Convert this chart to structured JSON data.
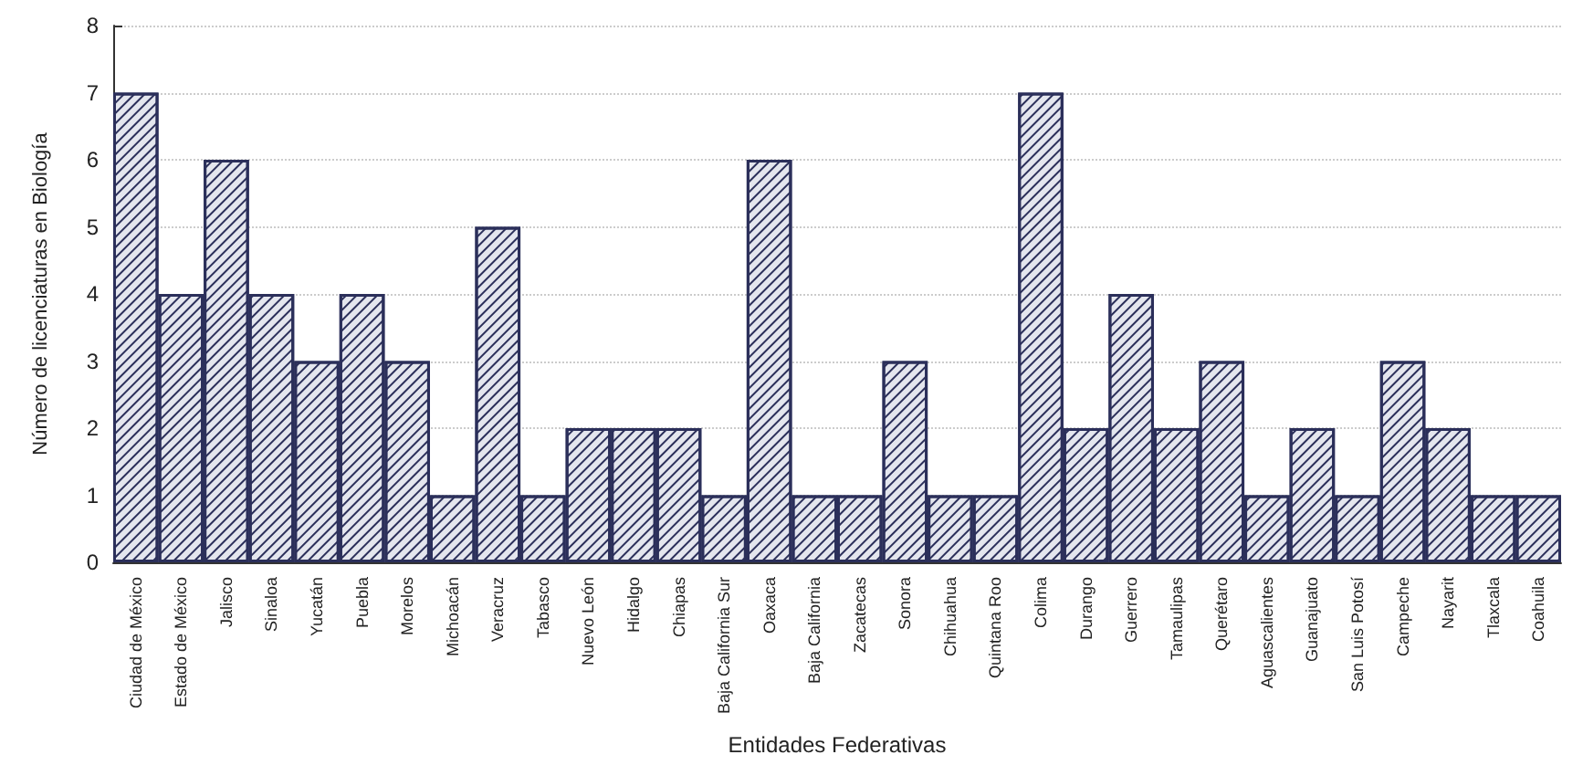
{
  "chart_data": {
    "type": "bar",
    "xlabel": "Entidades Federativas",
    "ylabel": "Número de licenciaturas en Biología",
    "categories": [
      "Ciudad de México",
      "Estado de México",
      "Jalisco",
      "Sinaloa",
      "Yucatán",
      "Puebla",
      "Morelos",
      "Michoacán",
      "Veracruz",
      "Tabasco",
      "Nuevo León",
      "Hidalgo",
      "Chiapas",
      "Baja California Sur",
      "Oaxaca",
      "Baja California",
      "Zacatecas",
      "Sonora",
      "Chihuahua",
      "Quintana Roo",
      "Colima",
      "Durango",
      "Guerrero",
      "Tamaulipas",
      "Querétaro",
      "Aguascalientes",
      "Guanajuato",
      "San Luis Potosí",
      "Campeche",
      "Nayarit",
      "Tlaxcala",
      "Coahuila"
    ],
    "values": [
      7,
      4,
      6,
      4,
      3,
      4,
      3,
      1,
      5,
      1,
      2,
      2,
      2,
      1,
      6,
      1,
      1,
      3,
      1,
      1,
      7,
      2,
      4,
      2,
      3,
      1,
      2,
      1,
      3,
      2,
      1,
      1
    ],
    "color": "#2b2f5a",
    "ylim": [
      0,
      8
    ],
    "yticks": [
      0,
      1,
      2,
      3,
      4,
      5,
      6,
      7,
      8
    ],
    "grid": "y"
  }
}
